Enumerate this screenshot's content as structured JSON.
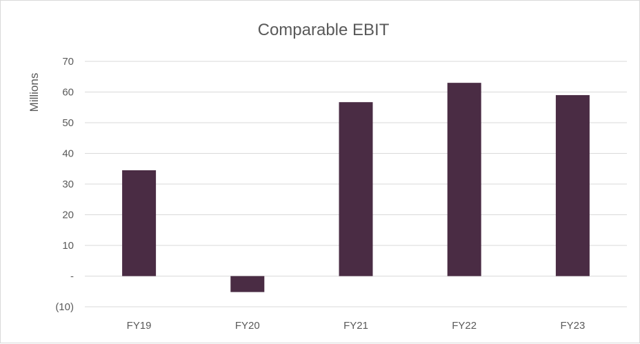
{
  "chart_data": {
    "type": "bar",
    "title": "Comparable EBIT",
    "xlabel": "",
    "ylabel": "Millions",
    "categories": [
      "FY19",
      "FY20",
      "FY21",
      "FY22",
      "FY23"
    ],
    "values": [
      34.5,
      -5.2,
      56.7,
      63.0,
      59.0
    ],
    "ylim": [
      -10,
      70
    ],
    "ytick_values": [
      70,
      60,
      50,
      40,
      30,
      20,
      10,
      0,
      -10
    ],
    "ytick_labels": [
      "70",
      "60",
      "50",
      "40",
      "30",
      "20",
      "10",
      "-",
      "(10)"
    ],
    "bar_color": "#4a2c44",
    "grid": true,
    "legend": "none"
  }
}
